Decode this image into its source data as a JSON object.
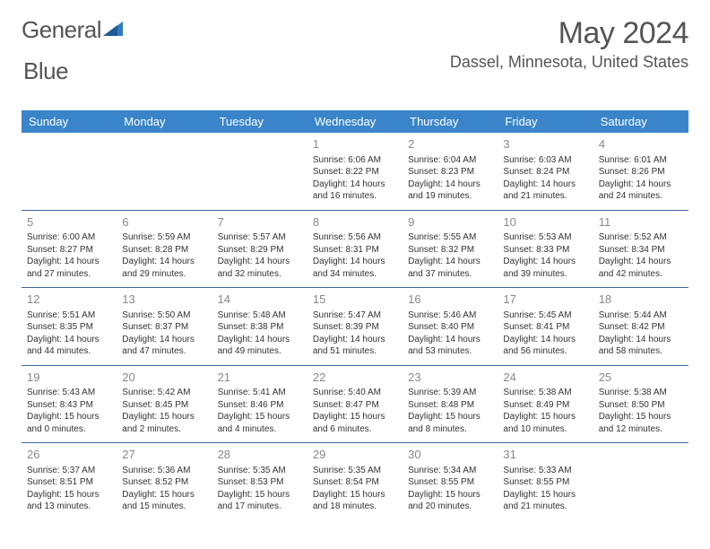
{
  "logo": {
    "t1": "General",
    "t2": "Blue"
  },
  "title": "May 2024",
  "location": "Dassel, Minnesota, United States",
  "colors": {
    "header_bg": "#3a85c9",
    "header_text": "#ffffff",
    "row_border": "#3a6a9a",
    "daynum_color": "#888888",
    "body_text": "#333333",
    "title_color": "#555555",
    "logo_blue": "#2f7ac0"
  },
  "weekdays": [
    "Sunday",
    "Monday",
    "Tuesday",
    "Wednesday",
    "Thursday",
    "Friday",
    "Saturday"
  ],
  "weeks": [
    [
      {
        "d": ""
      },
      {
        "d": ""
      },
      {
        "d": ""
      },
      {
        "d": "1",
        "sr": "Sunrise: 6:06 AM",
        "ss": "Sunset: 8:22 PM",
        "dl1": "Daylight: 14 hours",
        "dl2": "and 16 minutes."
      },
      {
        "d": "2",
        "sr": "Sunrise: 6:04 AM",
        "ss": "Sunset: 8:23 PM",
        "dl1": "Daylight: 14 hours",
        "dl2": "and 19 minutes."
      },
      {
        "d": "3",
        "sr": "Sunrise: 6:03 AM",
        "ss": "Sunset: 8:24 PM",
        "dl1": "Daylight: 14 hours",
        "dl2": "and 21 minutes."
      },
      {
        "d": "4",
        "sr": "Sunrise: 6:01 AM",
        "ss": "Sunset: 8:26 PM",
        "dl1": "Daylight: 14 hours",
        "dl2": "and 24 minutes."
      }
    ],
    [
      {
        "d": "5",
        "sr": "Sunrise: 6:00 AM",
        "ss": "Sunset: 8:27 PM",
        "dl1": "Daylight: 14 hours",
        "dl2": "and 27 minutes."
      },
      {
        "d": "6",
        "sr": "Sunrise: 5:59 AM",
        "ss": "Sunset: 8:28 PM",
        "dl1": "Daylight: 14 hours",
        "dl2": "and 29 minutes."
      },
      {
        "d": "7",
        "sr": "Sunrise: 5:57 AM",
        "ss": "Sunset: 8:29 PM",
        "dl1": "Daylight: 14 hours",
        "dl2": "and 32 minutes."
      },
      {
        "d": "8",
        "sr": "Sunrise: 5:56 AM",
        "ss": "Sunset: 8:31 PM",
        "dl1": "Daylight: 14 hours",
        "dl2": "and 34 minutes."
      },
      {
        "d": "9",
        "sr": "Sunrise: 5:55 AM",
        "ss": "Sunset: 8:32 PM",
        "dl1": "Daylight: 14 hours",
        "dl2": "and 37 minutes."
      },
      {
        "d": "10",
        "sr": "Sunrise: 5:53 AM",
        "ss": "Sunset: 8:33 PM",
        "dl1": "Daylight: 14 hours",
        "dl2": "and 39 minutes."
      },
      {
        "d": "11",
        "sr": "Sunrise: 5:52 AM",
        "ss": "Sunset: 8:34 PM",
        "dl1": "Daylight: 14 hours",
        "dl2": "and 42 minutes."
      }
    ],
    [
      {
        "d": "12",
        "sr": "Sunrise: 5:51 AM",
        "ss": "Sunset: 8:35 PM",
        "dl1": "Daylight: 14 hours",
        "dl2": "and 44 minutes."
      },
      {
        "d": "13",
        "sr": "Sunrise: 5:50 AM",
        "ss": "Sunset: 8:37 PM",
        "dl1": "Daylight: 14 hours",
        "dl2": "and 47 minutes."
      },
      {
        "d": "14",
        "sr": "Sunrise: 5:48 AM",
        "ss": "Sunset: 8:38 PM",
        "dl1": "Daylight: 14 hours",
        "dl2": "and 49 minutes."
      },
      {
        "d": "15",
        "sr": "Sunrise: 5:47 AM",
        "ss": "Sunset: 8:39 PM",
        "dl1": "Daylight: 14 hours",
        "dl2": "and 51 minutes."
      },
      {
        "d": "16",
        "sr": "Sunrise: 5:46 AM",
        "ss": "Sunset: 8:40 PM",
        "dl1": "Daylight: 14 hours",
        "dl2": "and 53 minutes."
      },
      {
        "d": "17",
        "sr": "Sunrise: 5:45 AM",
        "ss": "Sunset: 8:41 PM",
        "dl1": "Daylight: 14 hours",
        "dl2": "and 56 minutes."
      },
      {
        "d": "18",
        "sr": "Sunrise: 5:44 AM",
        "ss": "Sunset: 8:42 PM",
        "dl1": "Daylight: 14 hours",
        "dl2": "and 58 minutes."
      }
    ],
    [
      {
        "d": "19",
        "sr": "Sunrise: 5:43 AM",
        "ss": "Sunset: 8:43 PM",
        "dl1": "Daylight: 15 hours",
        "dl2": "and 0 minutes."
      },
      {
        "d": "20",
        "sr": "Sunrise: 5:42 AM",
        "ss": "Sunset: 8:45 PM",
        "dl1": "Daylight: 15 hours",
        "dl2": "and 2 minutes."
      },
      {
        "d": "21",
        "sr": "Sunrise: 5:41 AM",
        "ss": "Sunset: 8:46 PM",
        "dl1": "Daylight: 15 hours",
        "dl2": "and 4 minutes."
      },
      {
        "d": "22",
        "sr": "Sunrise: 5:40 AM",
        "ss": "Sunset: 8:47 PM",
        "dl1": "Daylight: 15 hours",
        "dl2": "and 6 minutes."
      },
      {
        "d": "23",
        "sr": "Sunrise: 5:39 AM",
        "ss": "Sunset: 8:48 PM",
        "dl1": "Daylight: 15 hours",
        "dl2": "and 8 minutes."
      },
      {
        "d": "24",
        "sr": "Sunrise: 5:38 AM",
        "ss": "Sunset: 8:49 PM",
        "dl1": "Daylight: 15 hours",
        "dl2": "and 10 minutes."
      },
      {
        "d": "25",
        "sr": "Sunrise: 5:38 AM",
        "ss": "Sunset: 8:50 PM",
        "dl1": "Daylight: 15 hours",
        "dl2": "and 12 minutes."
      }
    ],
    [
      {
        "d": "26",
        "sr": "Sunrise: 5:37 AM",
        "ss": "Sunset: 8:51 PM",
        "dl1": "Daylight: 15 hours",
        "dl2": "and 13 minutes."
      },
      {
        "d": "27",
        "sr": "Sunrise: 5:36 AM",
        "ss": "Sunset: 8:52 PM",
        "dl1": "Daylight: 15 hours",
        "dl2": "and 15 minutes."
      },
      {
        "d": "28",
        "sr": "Sunrise: 5:35 AM",
        "ss": "Sunset: 8:53 PM",
        "dl1": "Daylight: 15 hours",
        "dl2": "and 17 minutes."
      },
      {
        "d": "29",
        "sr": "Sunrise: 5:35 AM",
        "ss": "Sunset: 8:54 PM",
        "dl1": "Daylight: 15 hours",
        "dl2": "and 18 minutes."
      },
      {
        "d": "30",
        "sr": "Sunrise: 5:34 AM",
        "ss": "Sunset: 8:55 PM",
        "dl1": "Daylight: 15 hours",
        "dl2": "and 20 minutes."
      },
      {
        "d": "31",
        "sr": "Sunrise: 5:33 AM",
        "ss": "Sunset: 8:55 PM",
        "dl1": "Daylight: 15 hours",
        "dl2": "and 21 minutes."
      },
      {
        "d": ""
      }
    ]
  ]
}
